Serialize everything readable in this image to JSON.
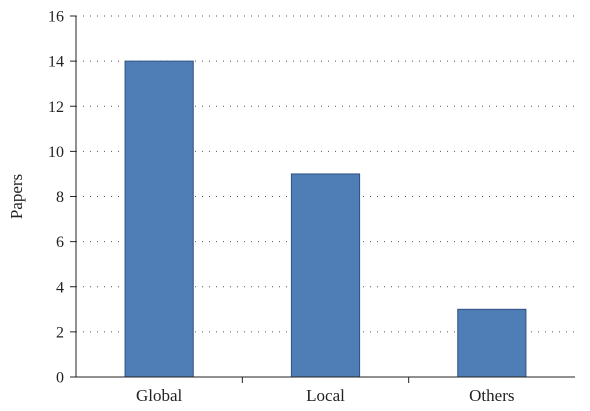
{
  "chart_data": {
    "type": "bar",
    "categories": [
      "Global",
      "Local",
      "Others"
    ],
    "values": [
      14,
      9,
      3
    ],
    "title": "",
    "xlabel": "",
    "ylabel": "Papers",
    "ylim": [
      0,
      16
    ],
    "yticks": [
      0,
      2,
      4,
      6,
      8,
      10,
      12,
      14,
      16
    ],
    "grid": true,
    "bar_color": "#4f7db5",
    "bar_edge_color": "#2f5283"
  }
}
